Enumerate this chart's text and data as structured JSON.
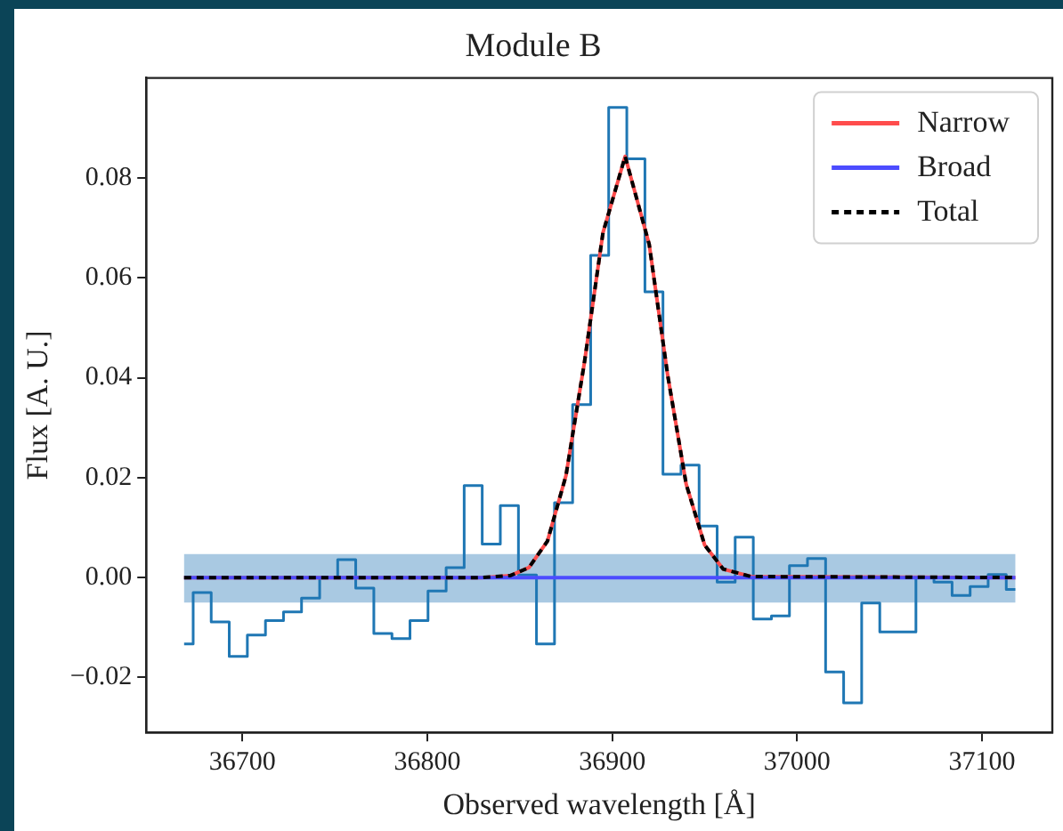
{
  "chart_data": {
    "type": "line",
    "title": "Module B",
    "xlabel": "Observed wavelength [Å]",
    "ylabel": "Flux [A. U.]",
    "xlim": [
      36648,
      37138
    ],
    "xticks": [
      36700,
      36800,
      36900,
      37000,
      37100
    ],
    "ylim": [
      -0.031,
      0.1
    ],
    "yticks": [
      {
        "value": -0.02,
        "label": "−0.02"
      },
      {
        "value": 0,
        "label": "0.00"
      },
      {
        "value": 0.02,
        "label": "0.02"
      },
      {
        "value": 0.04,
        "label": "0.04"
      },
      {
        "value": 0.06,
        "label": "0.06"
      },
      {
        "value": 0.08,
        "label": "0.08"
      }
    ],
    "bands": [
      {
        "axis": "y",
        "from": -0.005,
        "to": 0.0047,
        "color": "#a9c9e2"
      }
    ],
    "grid": false,
    "legend": "top right",
    "series": [
      {
        "type": "step",
        "color": "#1f77b4",
        "x": [
          36668.5,
          36678.3,
          36688.0,
          36697.8,
          36707.6,
          36717.4,
          36727.1,
          36736.9,
          36746.7,
          36756.4,
          36766.2,
          36776.0,
          36785.8,
          36795.5,
          36805.3,
          36815.1,
          36824.8,
          36834.6,
          36844.4,
          36854.2,
          36863.9,
          36873.7,
          36883.5,
          36893.2,
          36903.0,
          36912.8,
          36922.6,
          36932.3,
          36942.1,
          36951.9,
          36961.6,
          36971.4,
          36981.2,
          36991.0,
          37000.7,
          37010.5,
          37020.3,
          37030.0,
          37039.8,
          37049.6,
          37059.4,
          37069.1,
          37078.9,
          37088.7,
          37098.4,
          37108.2,
          37118.0
        ],
        "values": [
          -0.0133,
          -0.003,
          -0.0089,
          -0.0158,
          -0.0115,
          -0.0086,
          -0.0069,
          -0.0041,
          0.0,
          0.0036,
          -0.0021,
          -0.0112,
          -0.0122,
          -0.0086,
          -0.0027,
          0.002,
          0.0184,
          0.0067,
          0.0144,
          0.0005,
          -0.0133,
          0.015,
          0.0346,
          0.0645,
          0.0941,
          0.0838,
          0.0572,
          0.0207,
          0.0225,
          0.0103,
          -0.0009,
          0.0081,
          -0.0083,
          -0.0077,
          0.0024,
          0.0038,
          -0.0189,
          -0.0251,
          -0.0051,
          -0.0109,
          -0.0109,
          0.0,
          -0.0009,
          -0.0036,
          -0.0018,
          0.0006,
          -0.0024
        ]
      },
      {
        "name": "Narrow",
        "color": "#ff4c4c",
        "line_style": "solid",
        "x": [
          36668.5,
          36830,
          36845,
          36855,
          36865,
          36875,
          36885,
          36895,
          36907,
          36920,
          36930,
          36940,
          36950,
          36960,
          36975,
          37118
        ],
        "values": [
          0,
          0,
          0.0004,
          0.002,
          0.0073,
          0.0204,
          0.0431,
          0.069,
          0.0843,
          0.0667,
          0.0405,
          0.0187,
          0.0065,
          0.0017,
          0.0002,
          0
        ]
      },
      {
        "name": "Broad",
        "color": "#4c4cff",
        "line_style": "solid",
        "x": [
          36668.5,
          37118
        ],
        "values": [
          0,
          0
        ]
      },
      {
        "name": "Total",
        "color": "#000000",
        "line_style": "dashed",
        "x": [
          36668.5,
          36830,
          36845,
          36855,
          36865,
          36875,
          36885,
          36895,
          36907,
          36920,
          36930,
          36940,
          36950,
          36960,
          36975,
          37118
        ],
        "values": [
          0,
          0,
          0.0004,
          0.002,
          0.0073,
          0.0204,
          0.0431,
          0.069,
          0.0843,
          0.0667,
          0.0405,
          0.0187,
          0.0065,
          0.0017,
          0.0002,
          0
        ]
      }
    ]
  }
}
